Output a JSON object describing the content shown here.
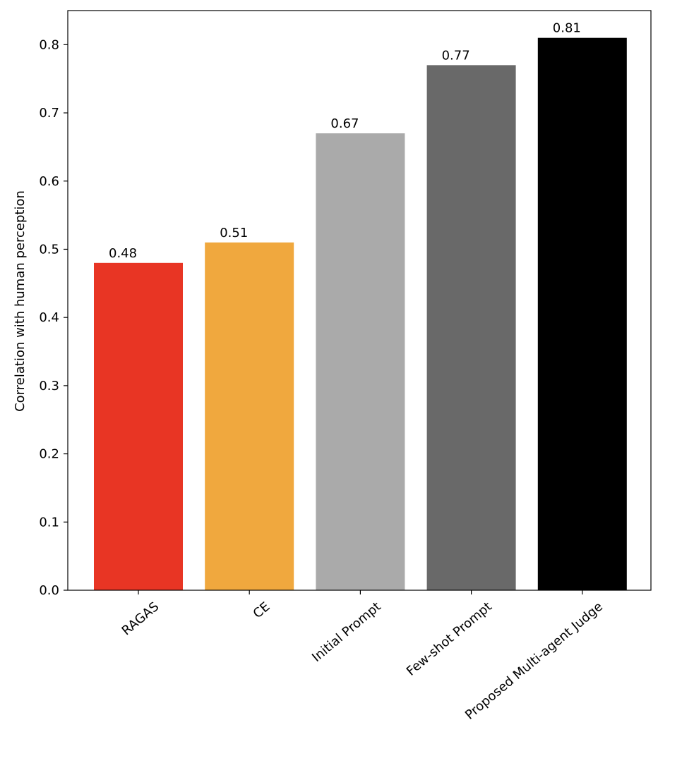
{
  "chart_data": {
    "type": "bar",
    "title": "",
    "xlabel": "",
    "ylabel": "Correlation with human perception",
    "categories": [
      "RAGAS",
      "CE",
      "Initial Prompt",
      "Few-shot Prompt",
      "Proposed Multi-agent Judge"
    ],
    "values": [
      0.48,
      0.51,
      0.67,
      0.77,
      0.81
    ],
    "value_labels": [
      "0.48",
      "0.51",
      "0.67",
      "0.77",
      "0.81"
    ],
    "colors": [
      "#E83524",
      "#F0A83E",
      "#AAAAAA",
      "#696969",
      "#000000"
    ],
    "ylim": [
      0,
      0.85
    ],
    "yticks": [
      0.0,
      0.1,
      0.2,
      0.3,
      0.4,
      0.5,
      0.6,
      0.7,
      0.8
    ],
    "ytick_labels": [
      "0.0",
      "0.1",
      "0.2",
      "0.3",
      "0.4",
      "0.5",
      "0.6",
      "0.7",
      "0.8"
    ],
    "grid": false,
    "legend": "none",
    "xtick_rotation_deg": -40
  }
}
